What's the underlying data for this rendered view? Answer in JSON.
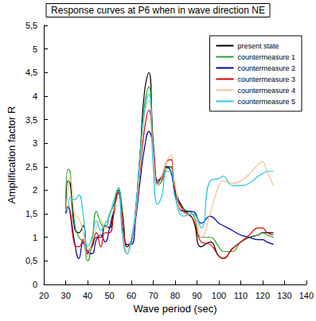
{
  "chart_data": {
    "type": "line",
    "title": "Response curves at P6 when in wave direction NE",
    "x_label": "Wave period (sec)",
    "y_label": "Amplification factor R",
    "x": [
      30,
      31,
      32,
      34,
      36,
      38,
      40,
      42,
      44,
      46,
      48,
      50,
      52,
      54,
      56,
      58,
      60,
      62,
      64,
      66,
      68,
      70,
      72,
      74,
      76,
      78,
      80,
      84,
      88,
      92,
      96,
      100,
      102,
      106,
      110,
      114,
      118,
      120,
      122,
      125
    ],
    "series": [
      {
        "name": "present state",
        "color": "#000000",
        "values": [
          1.5,
          2.2,
          2.15,
          1.2,
          1.1,
          1.25,
          0.65,
          0.8,
          1.0,
          1.0,
          1.25,
          1.2,
          1.6,
          2.0,
          1.5,
          0.8,
          0.9,
          1.6,
          2.8,
          4.1,
          4.5,
          3.0,
          2.2,
          2.3,
          2.5,
          2.5,
          2.0,
          1.6,
          1.4,
          0.8,
          0.9,
          0.6,
          0.55,
          0.75,
          0.9,
          1.0,
          1.05,
          1.1,
          1.1,
          1.1
        ]
      },
      {
        "name": "countermeasure 1",
        "color": "#2ca02c",
        "values": [
          1.7,
          2.45,
          2.4,
          1.3,
          1.0,
          0.9,
          0.5,
          0.9,
          1.55,
          1.3,
          1.2,
          1.5,
          1.7,
          2.05,
          1.5,
          0.8,
          0.95,
          1.6,
          2.6,
          3.8,
          4.2,
          2.9,
          2.1,
          2.2,
          2.45,
          2.5,
          1.9,
          1.6,
          1.5,
          1.0,
          1.0,
          0.8,
          0.7,
          0.7,
          0.9,
          1.0,
          1.05,
          1.1,
          1.05,
          1.0
        ]
      },
      {
        "name": "countermeasure 2",
        "color": "#0000aa",
        "values": [
          1.5,
          1.65,
          1.55,
          0.9,
          0.55,
          0.9,
          0.7,
          0.65,
          0.95,
          1.05,
          0.9,
          1.2,
          1.6,
          1.95,
          1.2,
          0.85,
          0.85,
          1.4,
          2.2,
          2.9,
          3.25,
          2.9,
          2.15,
          2.3,
          2.5,
          2.4,
          1.95,
          1.55,
          1.55,
          1.3,
          1.45,
          1.3,
          1.25,
          1.15,
          1.05,
          1.0,
          0.95,
          0.95,
          0.9,
          0.85
        ]
      },
      {
        "name": "countermeasure 3",
        "color": "#e00000",
        "values": [
          1.6,
          1.65,
          1.5,
          0.85,
          0.8,
          0.95,
          0.7,
          0.85,
          1.1,
          0.8,
          1.1,
          1.1,
          1.5,
          1.95,
          1.4,
          0.8,
          0.95,
          1.5,
          2.4,
          3.3,
          3.7,
          2.9,
          2.2,
          2.25,
          2.6,
          2.65,
          2.0,
          1.55,
          1.4,
          0.9,
          0.85,
          0.6,
          0.55,
          0.75,
          0.9,
          1.05,
          1.2,
          1.2,
          1.1,
          1.05
        ]
      },
      {
        "name": "countermeasure 4",
        "color": "#f5c08a",
        "values": [
          1.55,
          2.0,
          2.3,
          1.5,
          1.4,
          1.1,
          0.6,
          0.9,
          1.2,
          1.4,
          1.2,
          1.35,
          1.6,
          1.85,
          1.1,
          0.7,
          0.95,
          1.5,
          2.5,
          3.6,
          3.9,
          2.8,
          2.1,
          2.3,
          2.6,
          2.75,
          2.1,
          1.5,
          1.5,
          1.0,
          1.5,
          2.1,
          2.2,
          2.15,
          2.2,
          2.35,
          2.55,
          2.6,
          2.4,
          2.1
        ]
      },
      {
        "name": "countermeasure 5",
        "color": "#22c8e0",
        "values": [
          1.5,
          1.6,
          1.85,
          1.8,
          1.9,
          1.45,
          0.8,
          1.0,
          1.35,
          1.15,
          1.3,
          1.45,
          1.8,
          2.05,
          1.0,
          0.65,
          0.95,
          1.6,
          2.8,
          3.7,
          4.05,
          2.5,
          1.7,
          1.9,
          2.4,
          2.4,
          1.85,
          1.45,
          1.5,
          1.2,
          2.2,
          2.25,
          2.3,
          2.1,
          2.1,
          2.15,
          2.3,
          2.35,
          2.4,
          2.4
        ]
      }
    ],
    "xlim": [
      20,
      140
    ],
    "xticks": [
      20,
      30,
      40,
      50,
      60,
      70,
      80,
      90,
      100,
      110,
      120,
      130,
      140
    ],
    "ylim": [
      0,
      5.5
    ],
    "yticks": [
      0,
      {
        "value": 0.5,
        "label": "0,5"
      },
      1,
      {
        "value": 1.5,
        "label": "1,5"
      },
      2,
      {
        "value": 2.5,
        "label": "2,5"
      },
      3,
      {
        "value": 3.5,
        "label": "3,5"
      },
      4,
      {
        "value": 4.5,
        "label": "4,5"
      },
      5,
      {
        "value": 5.5,
        "label": "5,5"
      }
    ],
    "grid": false,
    "legend": "upper right",
    "marker": "none",
    "line_style": "solid"
  }
}
